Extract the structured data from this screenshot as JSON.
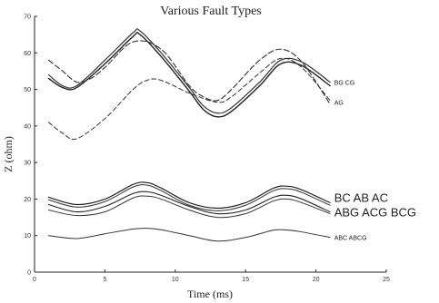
{
  "chart_data": {
    "type": "line",
    "title": "Various Fault Types",
    "xlabel": "Time (ms)",
    "ylabel": "Z (ohm)",
    "xlim": [
      0,
      25
    ],
    "ylim": [
      0,
      70
    ],
    "xticks": [
      "0",
      "5",
      "10",
      "15",
      "20",
      "25"
    ],
    "yticks": [
      "0",
      "10",
      "20",
      "30",
      "40",
      "50",
      "60",
      "70"
    ],
    "grid": false,
    "legend": "none",
    "series": [
      {
        "name": "BG CG",
        "color": "#222222",
        "width": 1.4,
        "dash": "",
        "x": [
          1,
          2,
          3,
          5,
          7,
          7.5,
          9,
          11,
          12,
          13,
          14,
          16,
          17.5,
          19,
          21
        ],
        "y": [
          53,
          50.5,
          50.5,
          57,
          64.5,
          65,
          59,
          49.5,
          44.5,
          42.5,
          44,
          51,
          57,
          56.5,
          51
        ]
      },
      {
        "name": "BG CG",
        "color": "#333333",
        "width": 1.2,
        "dash": "",
        "x": [
          1,
          2,
          3,
          5,
          7,
          7.5,
          9,
          11,
          12,
          13,
          14,
          16,
          17.5,
          19,
          21
        ],
        "y": [
          54,
          51,
          51,
          58,
          65.5,
          66,
          60,
          50.5,
          45.5,
          43.5,
          45,
          52,
          58,
          57.5,
          52
        ]
      },
      {
        "name": "AG",
        "color": "#333333",
        "width": 1.1,
        "dash": "6 3",
        "x": [
          1,
          2,
          3,
          4,
          5,
          7,
          9,
          11,
          12,
          13,
          14,
          16,
          17.5,
          19,
          21
        ],
        "y": [
          58,
          55,
          52,
          53,
          56,
          63,
          61,
          51,
          48,
          47,
          50,
          58,
          61,
          57.5,
          46
        ]
      },
      {
        "name": "AG",
        "color": "#333333",
        "width": 1.0,
        "dash": "5 3",
        "x": [
          1,
          2,
          3,
          5,
          7,
          8,
          9,
          11,
          13,
          14,
          16,
          17.5,
          19,
          21
        ],
        "y": [
          41,
          38,
          36.5,
          42,
          50,
          52.5,
          52.5,
          49,
          46.5,
          48,
          54.5,
          58.5,
          56,
          47
        ]
      },
      {
        "name": "BC AB AC",
        "color": "#222222",
        "width": 1.2,
        "dash": "",
        "x": [
          1,
          3,
          5,
          7,
          8,
          9,
          11,
          13,
          15,
          17,
          18,
          19,
          21
        ],
        "y": [
          20.5,
          18.5,
          20,
          24,
          24.5,
          23,
          19,
          17.5,
          19,
          23,
          23.5,
          22.5,
          19
        ]
      },
      {
        "name": "BC AB AC",
        "color": "#333333",
        "width": 1.0,
        "dash": "",
        "x": [
          1,
          3,
          5,
          7,
          8,
          9,
          11,
          13,
          15,
          17,
          18,
          19,
          21
        ],
        "y": [
          19.8,
          17.8,
          19.3,
          23.3,
          23.8,
          22.3,
          18.3,
          16.8,
          18.3,
          22.3,
          22.8,
          21.8,
          18.3
        ]
      },
      {
        "name": "ABG ACG BCG",
        "color": "#222222",
        "width": 1.1,
        "dash": "",
        "x": [
          1,
          3,
          5,
          7,
          8,
          9,
          11,
          13,
          15,
          17,
          18,
          19,
          21
        ],
        "y": [
          18.5,
          16.5,
          18,
          21.5,
          22,
          21,
          18,
          16,
          17,
          20.5,
          21,
          20,
          16.5
        ]
      },
      {
        "name": "ABG ACG BCG",
        "color": "#333333",
        "width": 1.0,
        "dash": "",
        "x": [
          1,
          3,
          5,
          7,
          8,
          9,
          11,
          13,
          15,
          17,
          18,
          19,
          21
        ],
        "y": [
          17,
          15.5,
          16.5,
          20.3,
          20.8,
          20,
          17,
          15,
          16,
          19.5,
          20,
          19,
          16
        ]
      },
      {
        "name": "ABC ABCG",
        "color": "#333333",
        "width": 1.0,
        "dash": "",
        "x": [
          1,
          3,
          5,
          7,
          8,
          9,
          11,
          13,
          15,
          17,
          18,
          19,
          21
        ],
        "y": [
          10,
          9.2,
          10.5,
          11.8,
          12,
          11.6,
          10,
          8.5,
          9.5,
          11.5,
          11.5,
          11,
          9.5
        ]
      }
    ],
    "annotations": [
      {
        "text": "BG  CG",
        "x": 21.3,
        "y": 52,
        "size": "small"
      },
      {
        "text": "AG",
        "x": 21.3,
        "y": 46.5,
        "size": "small"
      },
      {
        "text": "BC  AB AC",
        "x": 21.3,
        "y": 20,
        "size": "large"
      },
      {
        "text": "ABG  ACG  BCG",
        "x": 21.3,
        "y": 16,
        "size": "large"
      },
      {
        "text": "ABC  ABCG",
        "x": 21.3,
        "y": 9.5,
        "size": "small"
      }
    ]
  }
}
